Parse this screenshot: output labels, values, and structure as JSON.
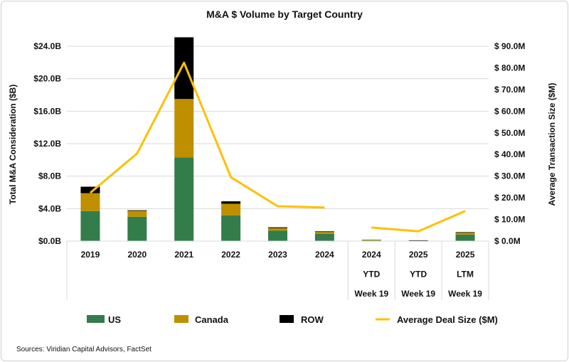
{
  "chart_data": {
    "type": "bar",
    "stacked": true,
    "title": "M&A $ Volume by Target Country",
    "ylabel": "Total M&A Consideration ($B)",
    "y2label": "Average Transaction Size ($M)",
    "ylim": [
      0,
      24
    ],
    "y2lim": [
      0,
      90
    ],
    "yticks": [
      "$0.0B",
      "$4.0B",
      "$8.0B",
      "$12.0B",
      "$16.0B",
      "$20.0B",
      "$24.0B"
    ],
    "y2ticks": [
      "$ 0.0M",
      "$ 10.0M",
      "$ 20.0M",
      "$ 30.0M",
      "$ 40.0M",
      "$ 50.0M",
      "$ 60.0M",
      "$ 70.0M",
      "$ 80.0M",
      "$ 90.0M"
    ],
    "grid": true,
    "legend_position": "bottom",
    "categories": [
      [
        "2019"
      ],
      [
        "2020"
      ],
      [
        "2021"
      ],
      [
        "2022"
      ],
      [
        "2023"
      ],
      [
        "2024"
      ],
      [
        "2024",
        "YTD",
        "Week 19"
      ],
      [
        "2025",
        "YTD",
        "Week 19"
      ],
      [
        "2025",
        "LTM",
        "Week 19"
      ]
    ],
    "series": [
      {
        "name": "US",
        "type": "bar",
        "color": "#327d4a",
        "values": [
          3.7,
          3.0,
          10.3,
          3.15,
          1.3,
          0.9,
          0.1,
          0.05,
          0.8
        ]
      },
      {
        "name": "Canada",
        "type": "bar",
        "color": "#bf8f00",
        "values": [
          2.2,
          0.75,
          7.2,
          1.45,
          0.3,
          0.25,
          0.1,
          0.03,
          0.25
        ]
      },
      {
        "name": "ROW",
        "type": "bar",
        "color": "#000000",
        "values": [
          0.8,
          0.05,
          7.6,
          0.3,
          0.1,
          0.05,
          0.0,
          0.02,
          0.05
        ]
      },
      {
        "name": "Average Deal Size ($M)",
        "type": "line",
        "axis": "right",
        "color": "#ffc000",
        "values": [
          22.3,
          40.5,
          82.4,
          29.5,
          16.1,
          15.5,
          6.3,
          4.5,
          13.9
        ],
        "segments": [
          [
            0,
            5
          ],
          [
            6,
            8
          ]
        ]
      }
    ]
  },
  "source": "Sources: Viridian Capital Advisors, FactSet"
}
